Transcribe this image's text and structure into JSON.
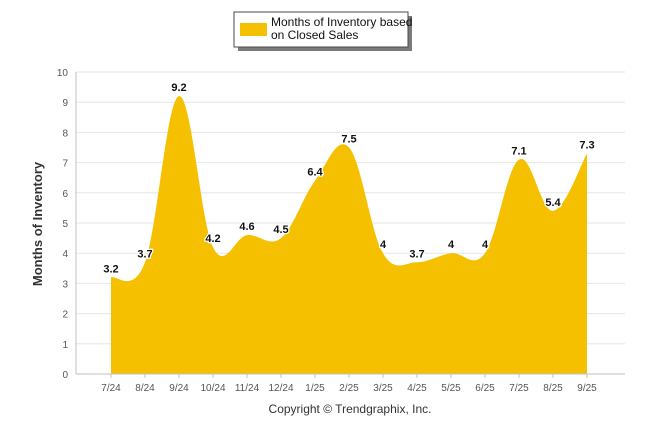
{
  "chart_data": {
    "type": "area",
    "title": "",
    "xlabel": "",
    "ylabel": "Months of Inventory",
    "ylim": [
      0,
      10
    ],
    "y_ticks": [
      0,
      1,
      2,
      3,
      4,
      5,
      6,
      7,
      8,
      9,
      10
    ],
    "grid": true,
    "legend_position": "top-center",
    "categories": [
      "7/24",
      "8/24",
      "9/24",
      "10/24",
      "11/24",
      "12/24",
      "1/25",
      "2/25",
      "3/25",
      "4/25",
      "5/25",
      "6/25",
      "7/25",
      "8/25",
      "9/25"
    ],
    "series": [
      {
        "name": "Months of Inventory based on Closed Sales",
        "legend_lines": [
          "Months of Inventory based",
          "on Closed Sales"
        ],
        "values": [
          3.2,
          3.7,
          9.2,
          4.2,
          4.6,
          4.5,
          6.4,
          7.5,
          4,
          3.7,
          4,
          4,
          7.1,
          5.4,
          7.3
        ],
        "labels": [
          "3.2",
          "3.7",
          "9.2",
          "4.2",
          "4.6",
          "4.5",
          "6.4",
          "7.5",
          "4",
          "3.7",
          "4",
          "4",
          "7.1",
          "5.4",
          "7.3"
        ],
        "color": "#F5C000"
      }
    ],
    "credit": "Copyright © Trendgraphix, Inc."
  }
}
